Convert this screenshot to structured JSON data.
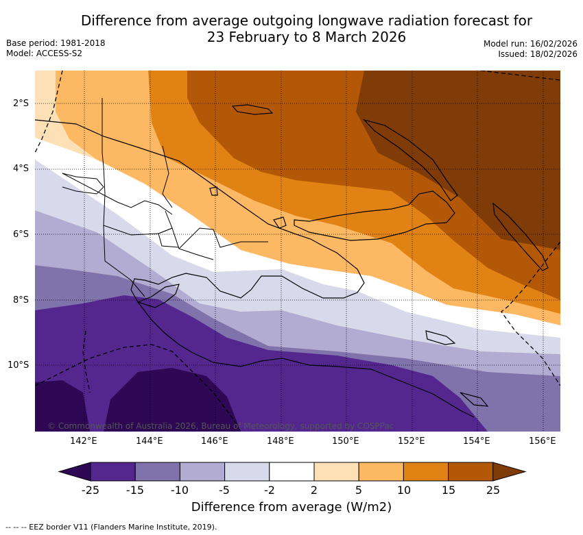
{
  "header": {
    "title_line1": "Difference from average outgoing longwave radiation forecast for",
    "title_line2": "23 February to 8 March 2026",
    "base_period": "Base period: 1981-2018",
    "model": "Model: ACCESS-S2",
    "model_run": "Model run: 16/02/2026",
    "issued": "Issued: 18/02/2026"
  },
  "map": {
    "lat_labels": [
      "2°S",
      "4°S",
      "6°S",
      "8°S",
      "10°S"
    ],
    "lon_labels": [
      "142°E",
      "144°E",
      "146°E",
      "148°E",
      "150°E",
      "152°E",
      "154°E",
      "156°E"
    ],
    "copyright": "© Commonwealth of Australia 2026, Bureau of Meteorology, supported by COSPPac"
  },
  "colorbar": {
    "title": "Difference from average (W/m2)",
    "ticks": [
      "-25",
      "-15",
      "-10",
      "-5",
      "-2",
      "2",
      "5",
      "10",
      "15",
      "25"
    ],
    "colors": [
      "#2e0854",
      "#54278f",
      "#8073ac",
      "#b2abd2",
      "#d8daeb",
      "#ffffff",
      "#fee0b6",
      "#fdb863",
      "#e08214",
      "#b35806",
      "#7f3b08"
    ]
  },
  "footnote": "-- -- -- EEZ border V11 (Flanders Marine Institute, 2019)."
}
